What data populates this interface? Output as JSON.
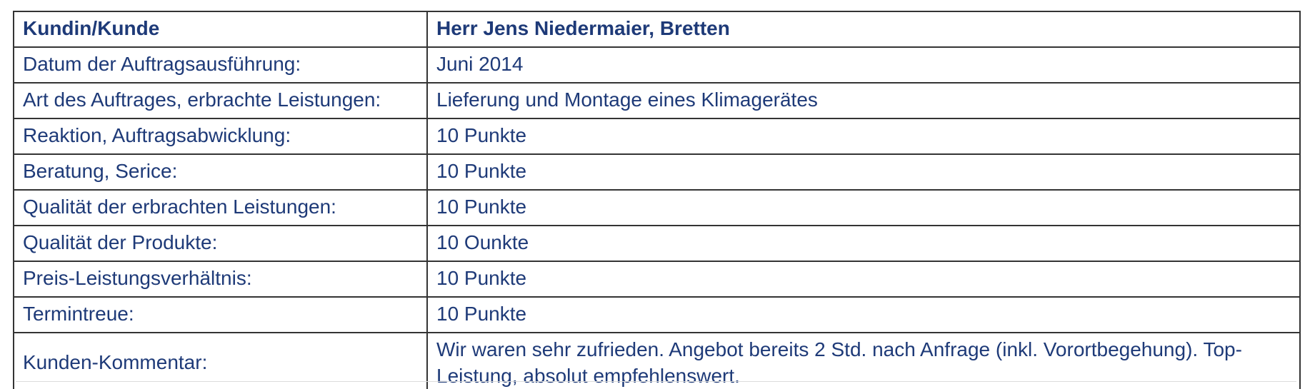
{
  "colors": {
    "text": "#1e3a78",
    "border": "#343434",
    "background": "#ffffff"
  },
  "table": {
    "rows": [
      {
        "label": "Kundin/Kunde",
        "value": "Herr Jens Niedermaier, Bretten",
        "bold": true
      },
      {
        "label": "Datum der Auftragsausführung:",
        "value": "Juni 2014"
      },
      {
        "label": "Art des Auftrages, erbrachte Leistungen:",
        "value": "Lieferung und Montage eines Klimagerätes"
      },
      {
        "label": "Reaktion, Auftragsabwicklung:",
        "value": "10 Punkte"
      },
      {
        "label": "Beratung, Serice:",
        "value": "10 Punkte"
      },
      {
        "label": "Qualität der erbrachten Leistungen:",
        "value": "10 Punkte"
      },
      {
        "label": "Qualität der Produkte:",
        "value": "10 Ounkte"
      },
      {
        "label": "Preis-Leistungsverhältnis:",
        "value": "10 Punkte"
      },
      {
        "label": "Termintreue:",
        "value": "10 Punkte"
      },
      {
        "label": "Kunden-Kommentar:",
        "value": "Wir waren sehr zufrieden. Angebot bereits 2 Std. nach Anfrage (inkl. Vorortbegehung). Top-Leistung, absolut empfehlenswert.",
        "tall": true
      }
    ]
  }
}
